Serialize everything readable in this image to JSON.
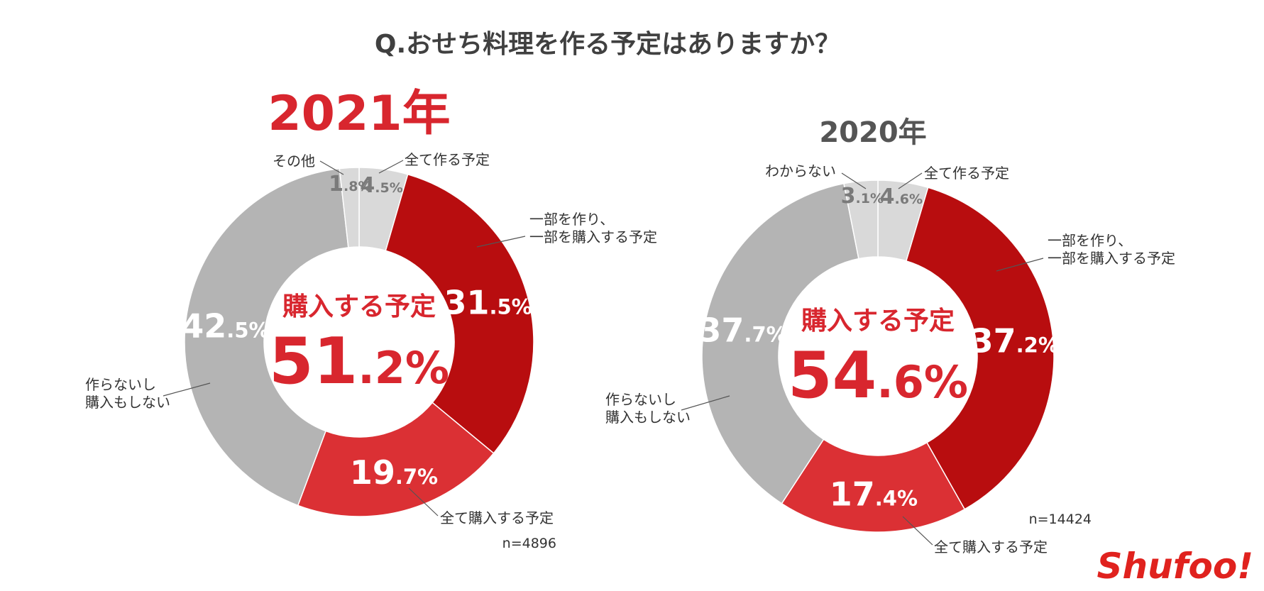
{
  "title": "Q.おせち料理を作る予定はありますか？",
  "colors": {
    "dark_red": "#b80d0f",
    "red": "#db3034",
    "gray": "#b4b4b4",
    "light_gray": "#d9d9d9",
    "text_light": "#ffffff",
    "text_gray": "#7a7a7a",
    "accent": "#d8262e"
  },
  "logo": "Shufoo!",
  "chart_data": [
    {
      "type": "pie",
      "donut": true,
      "title": "2021年",
      "n_label": "n=4896",
      "center": {
        "caption": "購入する予定",
        "value_int": "51",
        "value_dec": ".2%"
      },
      "slices": [
        {
          "name": "全て作る予定",
          "value": 4.5,
          "int": "4",
          "dec": ".5%",
          "color": "light_gray",
          "text": "text_gray"
        },
        {
          "name": "一部を作り、\n一部を購入する予定",
          "value": 31.5,
          "int": "31",
          "dec": ".5%",
          "color": "dark_red",
          "text": "text_light"
        },
        {
          "name": "全て購入する予定",
          "value": 19.7,
          "int": "19",
          "dec": ".7%",
          "color": "red",
          "text": "text_light"
        },
        {
          "name": "作らないし\n購入もしない",
          "value": 42.5,
          "int": "42",
          "dec": ".5%",
          "color": "gray",
          "text": "text_light"
        },
        {
          "name": "その他",
          "value": 1.8,
          "int": "1",
          "dec": ".8%",
          "color": "light_gray",
          "text": "text_gray"
        }
      ]
    },
    {
      "type": "pie",
      "donut": true,
      "title": "2020年",
      "n_label": "n=14424",
      "center": {
        "caption": "購入する予定",
        "value_int": "54",
        "value_dec": ".6%"
      },
      "slices": [
        {
          "name": "全て作る予定",
          "value": 4.6,
          "int": "4",
          "dec": ".6%",
          "color": "light_gray",
          "text": "text_gray"
        },
        {
          "name": "一部を作り、\n一部を購入する予定",
          "value": 37.2,
          "int": "37",
          "dec": ".2%",
          "color": "dark_red",
          "text": "text_light"
        },
        {
          "name": "全て購入する予定",
          "value": 17.4,
          "int": "17",
          "dec": ".4%",
          "color": "red",
          "text": "text_light"
        },
        {
          "name": "作らないし\n購入もしない",
          "value": 37.7,
          "int": "37",
          "dec": ".7%",
          "color": "gray",
          "text": "text_light"
        },
        {
          "name": "わからない",
          "value": 3.1,
          "int": "3",
          "dec": ".1%",
          "color": "light_gray",
          "text": "text_gray"
        }
      ]
    }
  ]
}
